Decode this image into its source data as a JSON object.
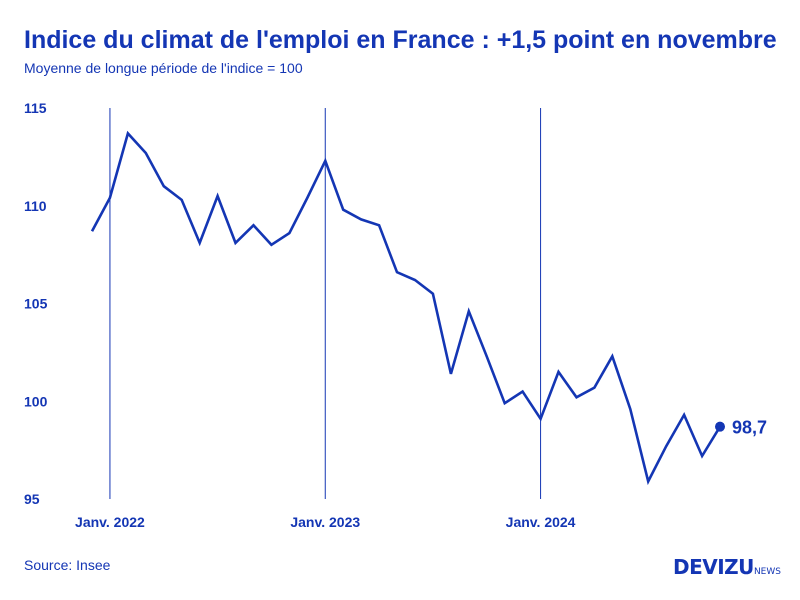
{
  "colors": {
    "primary": "#1436b4",
    "text": "#1436b4"
  },
  "header": {
    "title": "Indice du climat de l'emploi en France : +1,5 point en novembre",
    "subtitle": "Moyenne de longue période de l'indice = 100"
  },
  "footer": {
    "source": "Source: Insee",
    "brand": "DEVIZU",
    "brand_suffix": "NEWS"
  },
  "chart_data": {
    "type": "line",
    "title": "Indice du climat de l'emploi en France : +1,5 point en novembre",
    "subtitle": "Moyenne de longue période de l'indice = 100",
    "xlabel": "",
    "ylabel": "",
    "x": [
      "2021-12",
      "2022-01",
      "2022-02",
      "2022-03",
      "2022-04",
      "2022-05",
      "2022-06",
      "2022-07",
      "2022-08",
      "2022-09",
      "2022-10",
      "2022-11",
      "2022-12",
      "2023-01",
      "2023-02",
      "2023-03",
      "2023-04",
      "2023-05",
      "2023-06",
      "2023-07",
      "2023-08",
      "2023-09",
      "2023-10",
      "2023-11",
      "2023-12",
      "2024-01",
      "2024-02",
      "2024-03",
      "2024-04",
      "2024-05",
      "2024-06",
      "2024-07",
      "2024-08",
      "2024-09",
      "2024-10",
      "2024-11"
    ],
    "series": [
      {
        "name": "",
        "values": [
          108.7,
          110.4,
          113.7,
          112.7,
          111.0,
          110.3,
          108.1,
          110.5,
          108.1,
          109.0,
          108.0,
          108.6,
          110.4,
          112.3,
          109.8,
          109.3,
          109.0,
          106.6,
          106.2,
          105.5,
          101.4,
          104.6,
          102.3,
          99.9,
          100.5,
          99.1,
          101.5,
          100.2,
          100.7,
          102.3,
          99.6,
          95.9,
          97.7,
          99.3,
          97.2,
          98.7
        ]
      }
    ],
    "ylim": [
      95,
      115
    ],
    "yticks": [
      95,
      100,
      105,
      110,
      115
    ],
    "ytick_labels": [
      "95",
      "100",
      "105",
      "110",
      "115"
    ],
    "xticks": [
      "2022-01",
      "2023-01",
      "2024-01"
    ],
    "xtick_labels": [
      "Janv. 2022",
      "Janv. 2023",
      "Janv. 2024"
    ],
    "vertical_gridlines": true,
    "last_value_label": "98,7",
    "legend": "none"
  }
}
